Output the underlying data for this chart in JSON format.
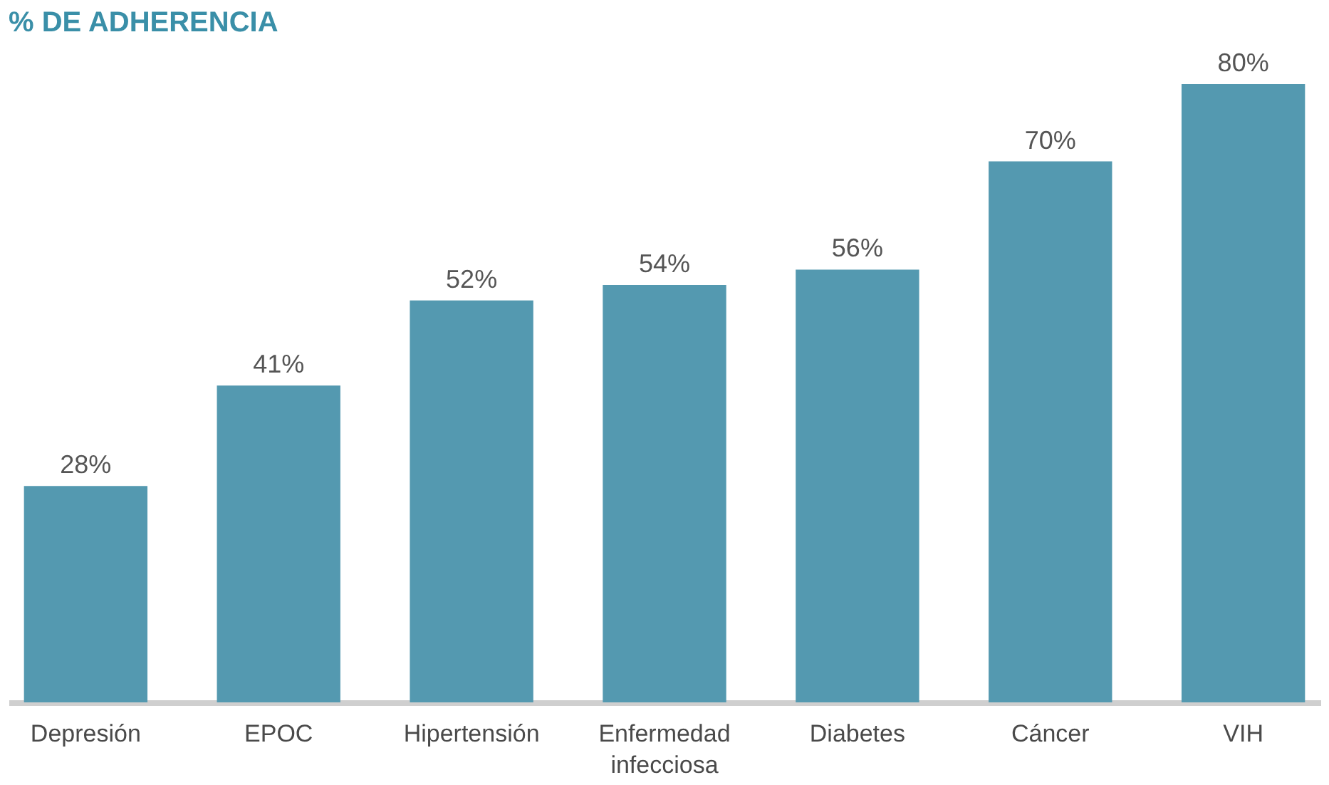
{
  "chart_data": {
    "type": "bar",
    "title": "% DE ADHERENCIA",
    "categories": [
      "Depresión",
      "EPOC",
      "Hipertensión",
      "Enfermedad infecciosa",
      "Diabetes",
      "Cáncer",
      "VIH"
    ],
    "values": [
      28,
      41,
      52,
      54,
      56,
      70,
      80
    ],
    "value_labels": [
      "28%",
      "41%",
      "52%",
      "54%",
      "56%",
      "70%",
      "80%"
    ],
    "color": "#5499b0",
    "grid": false
  }
}
